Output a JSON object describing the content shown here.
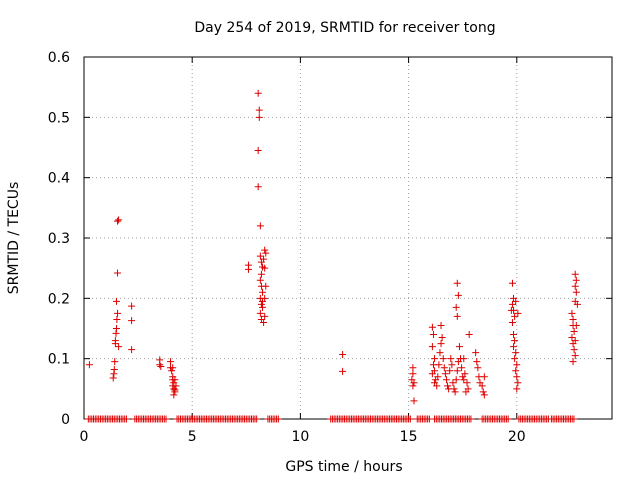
{
  "chart_data": {
    "type": "scatter",
    "title": "Day 254 of 2019, SRMTID for receiver tong",
    "xlabel": "GPS time / hours",
    "ylabel": "SRMTID / TECUs",
    "xlim": [
      0,
      24.4
    ],
    "ylim": [
      0,
      0.6
    ],
    "xticks": [
      0,
      5,
      10,
      15,
      20
    ],
    "xtick_labels": [
      "0",
      "5",
      "10",
      "15",
      "20"
    ],
    "yticks": [
      0,
      0.1,
      0.2,
      0.3,
      0.4,
      0.5,
      0.6
    ],
    "ytick_labels": [
      "0",
      "0.1",
      "0.2",
      "0.3",
      "0.4",
      "0.5",
      "0.6"
    ],
    "grid": true,
    "marker": "plus",
    "color": "#dd0000",
    "series": [
      {
        "name": "SRMTID",
        "points": [
          [
            0.25,
            0.09
          ],
          [
            1.35,
            0.068
          ],
          [
            1.38,
            0.075
          ],
          [
            1.4,
            0.082
          ],
          [
            1.42,
            0.095
          ],
          [
            1.45,
            0.125
          ],
          [
            1.45,
            0.13
          ],
          [
            1.48,
            0.142
          ],
          [
            1.5,
            0.15
          ],
          [
            1.52,
            0.165
          ],
          [
            1.55,
            0.175
          ],
          [
            1.5,
            0.195
          ],
          [
            1.55,
            0.242
          ],
          [
            1.55,
            0.328
          ],
          [
            1.6,
            0.33
          ],
          [
            1.6,
            0.12
          ],
          [
            2.2,
            0.187
          ],
          [
            2.2,
            0.163
          ],
          [
            2.2,
            0.115
          ],
          [
            3.5,
            0.098
          ],
          [
            3.5,
            0.09
          ],
          [
            3.55,
            0.087
          ],
          [
            4.0,
            0.095
          ],
          [
            4.0,
            0.085
          ],
          [
            4.05,
            0.08
          ],
          [
            4.1,
            0.07
          ],
          [
            4.1,
            0.065
          ],
          [
            4.15,
            0.06
          ],
          [
            4.1,
            0.055
          ],
          [
            4.15,
            0.05
          ],
          [
            4.2,
            0.048
          ],
          [
            4.2,
            0.045
          ],
          [
            4.15,
            0.04
          ],
          [
            4.25,
            0.055
          ],
          [
            4.2,
            0.065
          ],
          [
            4.1,
            0.085
          ],
          [
            7.6,
            0.255
          ],
          [
            7.6,
            0.248
          ],
          [
            8.05,
            0.54
          ],
          [
            8.1,
            0.512
          ],
          [
            8.1,
            0.5
          ],
          [
            8.05,
            0.445
          ],
          [
            8.05,
            0.385
          ],
          [
            8.15,
            0.32
          ],
          [
            8.15,
            0.27
          ],
          [
            8.2,
            0.26
          ],
          [
            8.25,
            0.252
          ],
          [
            8.2,
            0.24
          ],
          [
            8.15,
            0.23
          ],
          [
            8.2,
            0.22
          ],
          [
            8.25,
            0.21
          ],
          [
            8.15,
            0.2
          ],
          [
            8.2,
            0.19
          ],
          [
            8.25,
            0.185
          ],
          [
            8.15,
            0.175
          ],
          [
            8.2,
            0.165
          ],
          [
            8.3,
            0.16
          ],
          [
            8.35,
            0.17
          ],
          [
            8.35,
            0.2
          ],
          [
            8.4,
            0.22
          ],
          [
            8.35,
            0.25
          ],
          [
            8.4,
            0.275
          ],
          [
            8.35,
            0.28
          ],
          [
            8.3,
            0.265
          ],
          [
            8.25,
            0.195
          ],
          [
            11.95,
            0.107
          ],
          [
            11.95,
            0.079
          ],
          [
            15.2,
            0.085
          ],
          [
            15.2,
            0.075
          ],
          [
            15.15,
            0.065
          ],
          [
            15.25,
            0.06
          ],
          [
            15.2,
            0.055
          ],
          [
            15.25,
            0.03
          ],
          [
            16.1,
            0.152
          ],
          [
            16.15,
            0.14
          ],
          [
            16.1,
            0.12
          ],
          [
            16.2,
            0.1
          ],
          [
            16.15,
            0.09
          ],
          [
            16.2,
            0.08
          ],
          [
            16.1,
            0.075
          ],
          [
            16.25,
            0.065
          ],
          [
            16.2,
            0.06
          ],
          [
            16.3,
            0.055
          ],
          [
            16.35,
            0.07
          ],
          [
            16.4,
            0.09
          ],
          [
            16.45,
            0.11
          ],
          [
            16.5,
            0.125
          ],
          [
            16.55,
            0.135
          ],
          [
            16.5,
            0.155
          ],
          [
            16.6,
            0.1
          ],
          [
            16.65,
            0.085
          ],
          [
            16.7,
            0.075
          ],
          [
            16.75,
            0.065
          ],
          [
            16.8,
            0.055
          ],
          [
            16.85,
            0.05
          ],
          [
            16.9,
            0.08
          ],
          [
            16.95,
            0.1
          ],
          [
            17.0,
            0.09
          ],
          [
            17.05,
            0.06
          ],
          [
            17.1,
            0.05
          ],
          [
            17.15,
            0.045
          ],
          [
            17.2,
            0.065
          ],
          [
            17.25,
            0.08
          ],
          [
            17.3,
            0.095
          ],
          [
            17.25,
            0.225
          ],
          [
            17.3,
            0.205
          ],
          [
            17.2,
            0.185
          ],
          [
            17.25,
            0.17
          ],
          [
            17.35,
            0.12
          ],
          [
            17.4,
            0.1
          ],
          [
            17.45,
            0.085
          ],
          [
            17.5,
            0.07
          ],
          [
            17.55,
            0.065
          ],
          [
            17.6,
            0.075
          ],
          [
            17.7,
            0.06
          ],
          [
            17.75,
            0.05
          ],
          [
            17.65,
            0.045
          ],
          [
            17.8,
            0.14
          ],
          [
            17.55,
            0.1
          ],
          [
            18.1,
            0.11
          ],
          [
            18.15,
            0.095
          ],
          [
            18.2,
            0.085
          ],
          [
            18.25,
            0.07
          ],
          [
            18.3,
            0.06
          ],
          [
            18.4,
            0.055
          ],
          [
            18.5,
            0.07
          ],
          [
            18.45,
            0.045
          ],
          [
            18.5,
            0.04
          ],
          [
            19.8,
            0.225
          ],
          [
            19.85,
            0.2
          ],
          [
            19.8,
            0.19
          ],
          [
            19.85,
            0.18
          ],
          [
            19.9,
            0.17
          ],
          [
            19.8,
            0.16
          ],
          [
            19.85,
            0.14
          ],
          [
            19.9,
            0.13
          ],
          [
            19.85,
            0.12
          ],
          [
            19.95,
            0.11
          ],
          [
            19.9,
            0.1
          ],
          [
            20.0,
            0.09
          ],
          [
            19.95,
            0.08
          ],
          [
            20.0,
            0.07
          ],
          [
            20.05,
            0.06
          ],
          [
            20.0,
            0.05
          ],
          [
            19.95,
            0.195
          ],
          [
            20.05,
            0.175
          ],
          [
            19.75,
            0.18
          ],
          [
            22.55,
            0.175
          ],
          [
            22.6,
            0.165
          ],
          [
            22.6,
            0.155
          ],
          [
            22.65,
            0.145
          ],
          [
            22.55,
            0.135
          ],
          [
            22.6,
            0.125
          ],
          [
            22.65,
            0.115
          ],
          [
            22.7,
            0.105
          ],
          [
            22.6,
            0.095
          ],
          [
            22.7,
            0.24
          ],
          [
            22.75,
            0.23
          ],
          [
            22.7,
            0.22
          ],
          [
            22.75,
            0.21
          ],
          [
            22.7,
            0.195
          ],
          [
            22.8,
            0.19
          ],
          [
            22.75,
            0.155
          ],
          [
            22.7,
            0.13
          ]
        ],
        "zero_ranges": [
          [
            0.2,
            2.0
          ],
          [
            2.35,
            3.8
          ],
          [
            4.3,
            8.0
          ],
          [
            8.5,
            9.0
          ],
          [
            11.4,
            15.1
          ],
          [
            15.4,
            16.0
          ],
          [
            16.2,
            17.9
          ],
          [
            18.4,
            19.6
          ],
          [
            20.1,
            21.5
          ],
          [
            21.6,
            22.7
          ]
        ],
        "zero_step": 0.08
      }
    ]
  }
}
